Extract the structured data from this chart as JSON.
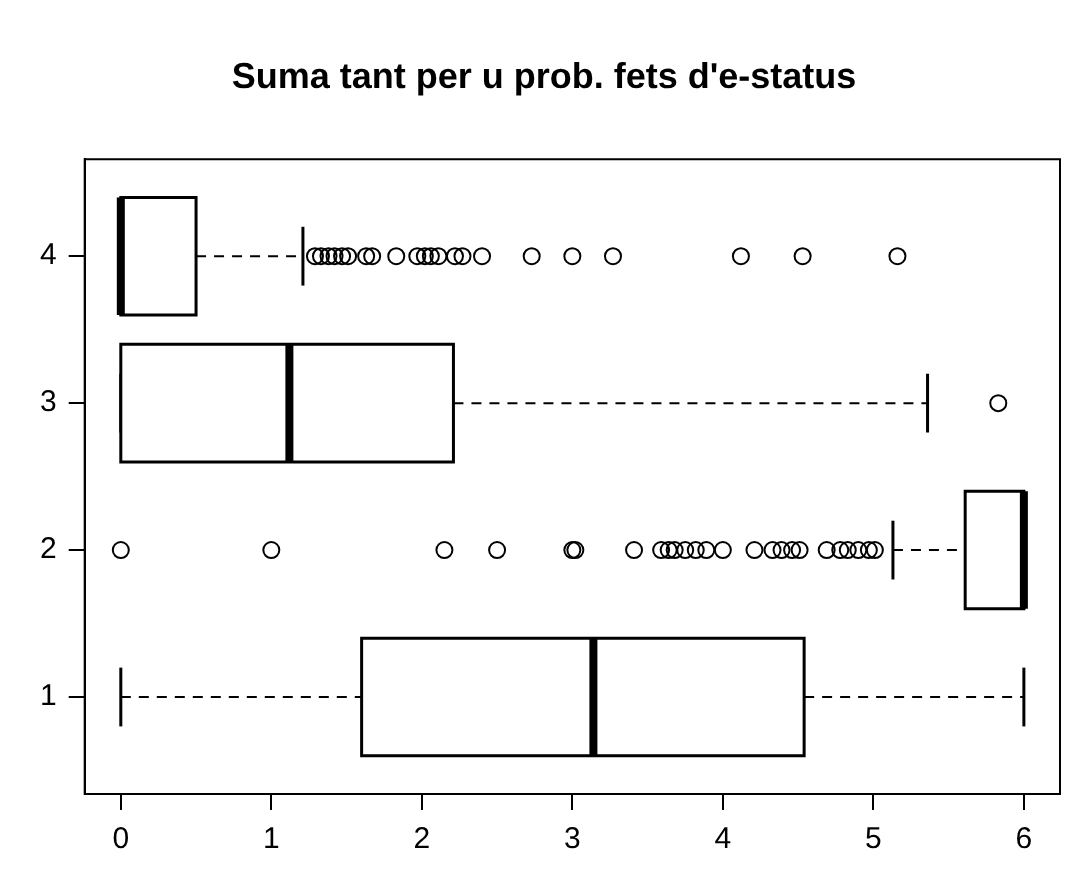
{
  "chart_data": {
    "type": "box",
    "title": "Suma tant per u prob. fets d'e-status",
    "orientation": "horizontal",
    "categories": [
      "4",
      "3",
      "2",
      "1"
    ],
    "xlim": [
      -0.24,
      6.24
    ],
    "xticks": [
      0,
      1,
      2,
      3,
      4,
      5,
      6
    ],
    "boxes": [
      {
        "low": 0,
        "q1": 0,
        "median": 0,
        "q3": 0.5,
        "high": 1.21,
        "outliers": [
          1.29,
          1.33,
          1.38,
          1.42,
          1.47,
          1.51,
          1.63,
          1.67,
          1.83,
          1.97,
          2.02,
          2.06,
          2.11,
          2.22,
          2.27,
          2.4,
          2.73,
          3.0,
          3.27,
          4.12,
          4.53,
          5.16
        ]
      },
      {
        "low": 0,
        "q1": 0,
        "median": 1.12,
        "q3": 2.21,
        "high": 5.36,
        "outliers": [
          5.83
        ]
      },
      {
        "low": 5.13,
        "q1": 5.61,
        "median": 6,
        "q3": 6,
        "high": 6,
        "outliers": [
          0,
          1.0,
          2.15,
          2.5,
          3.0,
          3.02,
          3.41,
          3.59,
          3.64,
          3.68,
          3.75,
          3.82,
          3.89,
          4.0,
          4.21,
          4.33,
          4.39,
          4.46,
          4.51,
          4.69,
          4.78,
          4.83,
          4.9,
          4.97,
          5.01
        ]
      },
      {
        "low": 0,
        "q1": 1.6,
        "median": 3.14,
        "q3": 4.54,
        "high": 6
      }
    ]
  }
}
